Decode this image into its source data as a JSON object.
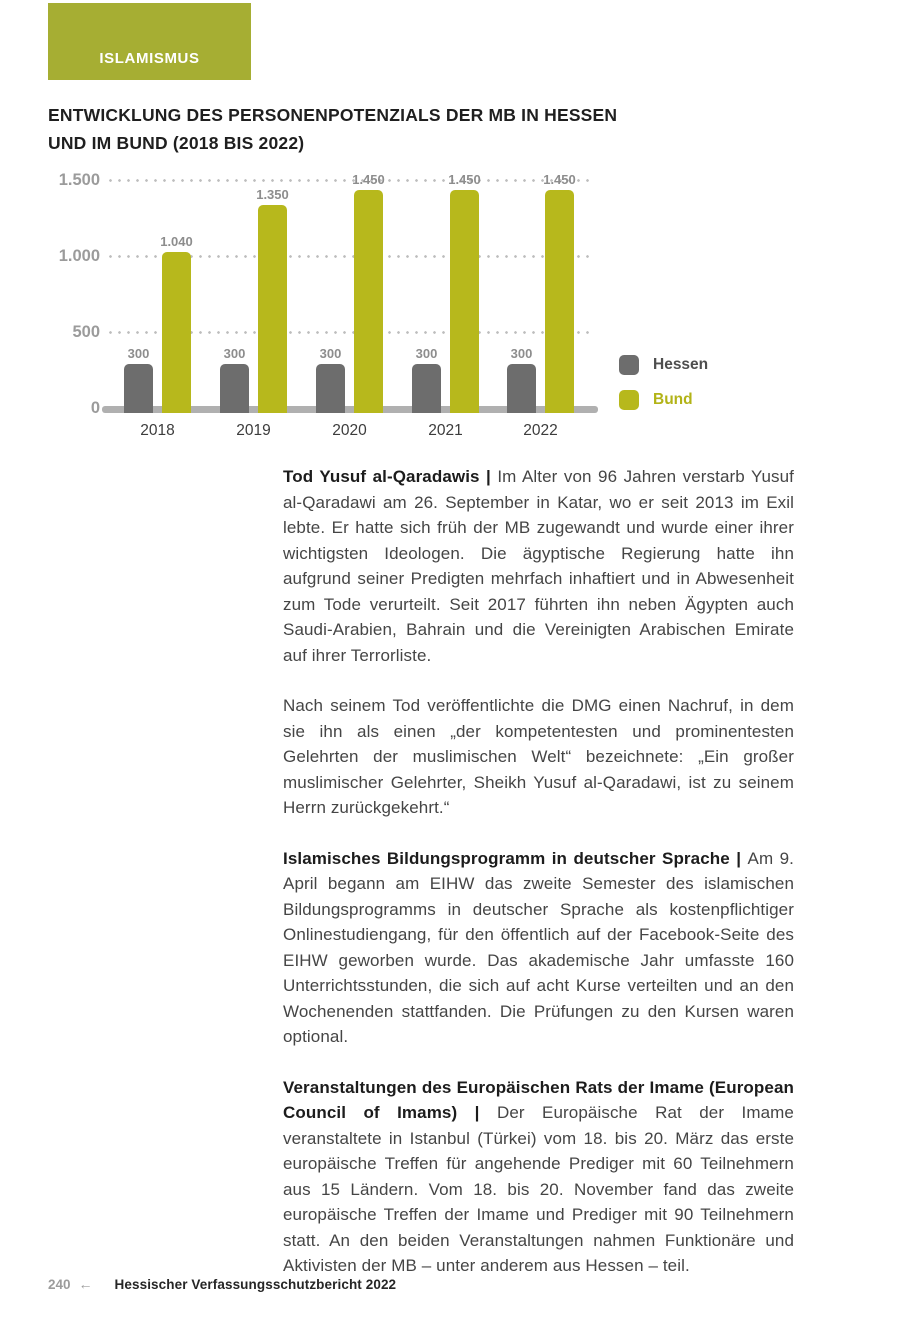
{
  "section_tab": "ISLAMISMUS",
  "colors": {
    "tab_olive": "#a6ae33",
    "bund_olive": "#b7b81c",
    "hessen_gray": "#6d6d6d",
    "bund_label": "#b2b317",
    "hessen_label": "#4e4e4e"
  },
  "chart": {
    "title_line1": "ENTWICKLUNG DES PERSONENPOTENZIALS DER MB IN HESSEN",
    "title_line2": "UND IM BUND (2018 BIS 2022)"
  },
  "chart_data": {
    "type": "bar",
    "title": "Entwicklung des Personenpotenzials der MB in Hessen und im Bund (2018 bis 2022)",
    "categories": [
      "2018",
      "2019",
      "2020",
      "2021",
      "2022"
    ],
    "series": [
      {
        "name": "Hessen",
        "color": "#6d6d6d",
        "values": [
          300,
          300,
          300,
          300,
          300
        ],
        "labels": [
          "300",
          "300",
          "300",
          "300",
          "300"
        ]
      },
      {
        "name": "Bund",
        "color": "#b7b81c",
        "values": [
          1040,
          1350,
          1450,
          1450,
          1450
        ],
        "labels": [
          "1.040",
          "1.350",
          "1.450",
          "1.450",
          "1.450"
        ]
      }
    ],
    "y_ticks": [
      {
        "value": 0,
        "label": "0"
      },
      {
        "value": 500,
        "label": "500"
      },
      {
        "value": 1000,
        "label": "1.000"
      },
      {
        "value": 1500,
        "label": "1.500"
      }
    ],
    "ylim": [
      0,
      1500
    ],
    "grid": "dotted-horizontal",
    "legend_position": "right"
  },
  "paragraphs": [
    {
      "lead": "Tod Yusuf al-Qaradawis | ",
      "body": "Im Alter von 96 Jahren verstarb Yusuf al-Qa­radawi am 26. September in Katar, wo er seit 2013 im Exil lebte. Er hatte sich früh der MB zugewandt und wurde einer ihrer wichtigsten Ideologen. Die ägyptische Regierung hatte ihn aufgrund seiner Pre­digten mehrfach inhaftiert und in Abwesenheit zum Tode verurteilt. Seit 2017 führten ihn neben Ägypten auch Saudi-Arabien, Bahrain und die Vereinigten Arabischen Emirate auf ihrer Terrorliste."
    },
    {
      "lead": "",
      "body": "Nach seinem Tod veröffentlichte die DMG einen Nachruf, in dem sie ihn als einen „der kompetentesten und prominentesten Gelehrten der muslimischen Welt“ bezeichnete: „Ein großer muslimischer Ge­lehrter, Sheikh Yusuf al-Qaradawi, ist zu seinem Herrn zurückgekehrt.“"
    },
    {
      "lead": "Islamisches Bildungsprogramm in deutscher Sprache | ",
      "body": "Am 9. April be­gann am EIHW das zweite Semester des islamischen Bildungspro­gramms in deutscher Sprache als kostenpflichtiger Onlinestudien­gang, für den öffentlich auf der Facebook-Seite des EIHW geworben wurde. Das akademische Jahr umfasste 160 Unterrichtsstunden, die sich auf acht Kurse verteilten und an den Wochenenden stattfanden. Die Prüfungen zu den Kursen waren optional."
    },
    {
      "lead": "Veranstaltungen des Europäischen Rats der Imame (European Council of Imams) | ",
      "body": "Der Europäische Rat der Imame veranstaltete in Istanbul (Türkei) vom 18. bis 20. März das erste europäische Treffen für ange­hende Prediger mit 60 Teilnehmern aus 15 Ländern. Vom 18. bis 20. November fand das zweite europäische Treffen der Imame und Pre­diger mit 90 Teilnehmern statt. An den beiden Veranstaltungen nah­men Funktionäre und Aktivisten der MB – unter anderem aus Hessen – teil."
    }
  ],
  "footer": {
    "page_number": "240",
    "arrow": "←",
    "report_title": "Hessischer Verfassungsschutzbericht 2022"
  }
}
